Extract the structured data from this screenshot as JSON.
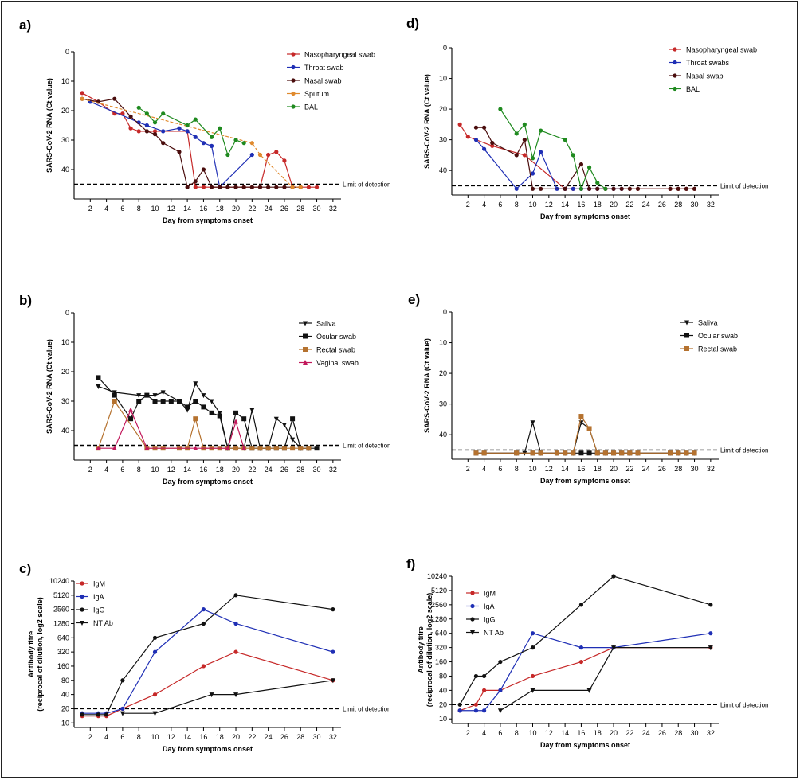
{
  "common": {
    "limit_of_detection_label": "Limit of detection",
    "lod_ct": 45,
    "ct_ticks": [
      0,
      10,
      20,
      30,
      40
    ]
  },
  "colors": {
    "red": "#c62828",
    "blue": "#1f2fb5",
    "darkred": "#4a0d0d",
    "orange": "#e08a2e",
    "green": "#1f8a1f",
    "black": "#111111",
    "brown": "#b5722f",
    "crimson": "#c2185b"
  },
  "chart_data": [
    {
      "id": "a",
      "panel_label": "a)",
      "type": "line",
      "ylabel": "SARS-CoV-2 RNA (Ct value)",
      "xlabel": "Day from symptoms onset",
      "xlim": [
        0,
        33
      ],
      "ylim": [
        0,
        50
      ],
      "y_reversed": true,
      "x_ticks": [
        2,
        4,
        6,
        8,
        10,
        12,
        14,
        16,
        18,
        20,
        22,
        24,
        26,
        28,
        30,
        32
      ],
      "limit_of_detection": 45,
      "series": [
        {
          "name": "Nasopharyngeal swab",
          "color": "red",
          "marker": "circle",
          "x": [
            1,
            3,
            5,
            6,
            7,
            8,
            10,
            14,
            15,
            16,
            18,
            19,
            20,
            21,
            22,
            23,
            24,
            25,
            26,
            27,
            28,
            29,
            30
          ],
          "y": [
            14,
            17,
            21,
            21,
            26,
            27,
            27,
            27,
            46,
            46,
            46,
            46,
            46,
            46,
            46,
            46,
            35,
            34,
            37,
            46,
            46,
            46,
            46
          ]
        },
        {
          "name": "Throat swab",
          "color": "blue",
          "marker": "circle",
          "x": [
            2,
            8,
            9,
            11,
            13,
            14,
            15,
            16,
            17,
            18,
            22
          ],
          "y": [
            17,
            24,
            25,
            27,
            26,
            27,
            29,
            31,
            32,
            46,
            35
          ]
        },
        {
          "name": "Nasal swab",
          "color": "darkred",
          "marker": "circle",
          "x": [
            1,
            3,
            5,
            7,
            9,
            10,
            11,
            13,
            14,
            15,
            16,
            17,
            18,
            19,
            20,
            21,
            22,
            23,
            24,
            25,
            26,
            27,
            28
          ],
          "y": [
            16,
            17,
            16,
            22,
            27,
            28,
            31,
            34,
            46,
            44,
            40,
            46,
            46,
            46,
            46,
            46,
            46,
            46,
            46,
            46,
            46,
            46,
            46
          ]
        },
        {
          "name": "Sputum",
          "color": "orange",
          "marker": "circle",
          "x": [
            1,
            22,
            23,
            27,
            28
          ],
          "y": [
            16,
            31,
            35,
            46,
            46
          ]
        },
        {
          "name": "BAL",
          "color": "green",
          "marker": "circle",
          "x": [
            8,
            9,
            10,
            11,
            14,
            15,
            17,
            18,
            19,
            20,
            21
          ],
          "y": [
            19,
            21,
            24,
            21,
            25,
            23,
            29,
            26,
            35,
            30,
            31
          ]
        }
      ]
    },
    {
      "id": "b",
      "panel_label": "b)",
      "type": "line",
      "ylabel": "SARS-CoV-2 RNA (Ct value)",
      "xlabel": "Day from symptoms onset",
      "xlim": [
        0,
        33
      ],
      "ylim": [
        0,
        50
      ],
      "y_reversed": true,
      "x_ticks": [
        2,
        4,
        6,
        8,
        10,
        12,
        14,
        16,
        18,
        20,
        22,
        24,
        26,
        28,
        30,
        32
      ],
      "limit_of_detection": 45,
      "series": [
        {
          "name": "Saliva",
          "color": "black",
          "marker": "triangle-down",
          "x": [
            3,
            5,
            8,
            9,
            10,
            11,
            13,
            14,
            15,
            16,
            17,
            18,
            19,
            20,
            21,
            22,
            23,
            24,
            25,
            26,
            27,
            28,
            29
          ],
          "y": [
            25,
            27,
            28,
            28,
            28,
            27,
            30,
            33,
            24,
            28,
            30,
            34,
            46,
            46,
            46,
            33,
            46,
            46,
            36,
            38,
            43,
            46,
            46
          ]
        },
        {
          "name": "Ocular swab",
          "color": "black",
          "marker": "square",
          "x": [
            3,
            5,
            7,
            8,
            9,
            10,
            11,
            12,
            13,
            14,
            15,
            16,
            17,
            18,
            19,
            20,
            21,
            22,
            23,
            24,
            25,
            26,
            27,
            28,
            29,
            30
          ],
          "y": [
            22,
            28,
            36,
            30,
            28,
            30,
            30,
            30,
            30,
            32,
            30,
            32,
            34,
            35,
            46,
            34,
            36,
            46,
            46,
            46,
            46,
            46,
            36,
            46,
            46,
            46
          ]
        },
        {
          "name": "Rectal swab",
          "color": "brown",
          "marker": "square",
          "x": [
            3,
            5,
            9,
            10,
            11,
            13,
            14,
            15,
            16,
            17,
            18,
            19,
            20,
            21,
            22,
            23,
            24,
            25,
            26,
            27,
            28,
            29
          ],
          "y": [
            46,
            30,
            46,
            46,
            46,
            46,
            46,
            36,
            46,
            46,
            46,
            46,
            46,
            46,
            46,
            46,
            46,
            46,
            46,
            46,
            46,
            46
          ]
        },
        {
          "name": "Vaginal swab",
          "color": "crimson",
          "marker": "triangle",
          "x": [
            3,
            5,
            7,
            9,
            15,
            19,
            20,
            21
          ],
          "y": [
            46,
            46,
            33,
            46,
            46,
            46,
            37,
            46
          ]
        }
      ]
    },
    {
      "id": "c",
      "panel_label": "c)",
      "type": "line",
      "ylabel": "Antibody titre (reciprocal of dilution, log2 scale)",
      "xlabel": "Day from symptoms onset",
      "xlim": [
        0,
        33
      ],
      "y_scale": "log2",
      "ylim": [
        8,
        10240
      ],
      "x_ticks": [
        2,
        4,
        6,
        8,
        10,
        12,
        14,
        16,
        18,
        20,
        22,
        24,
        26,
        28,
        30,
        32
      ],
      "y_ticks": [
        10,
        20,
        40,
        80,
        160,
        320,
        640,
        1280,
        2560,
        5120,
        10240
      ],
      "limit_of_detection": 20,
      "series": [
        {
          "name": "IgM",
          "color": "red",
          "marker": "circle",
          "x": [
            1,
            3,
            4,
            6,
            10,
            16,
            20,
            32
          ],
          "y": [
            14,
            14,
            14,
            20,
            40,
            160,
            320,
            80
          ]
        },
        {
          "name": "IgA",
          "color": "blue",
          "marker": "circle",
          "x": [
            1,
            3,
            4,
            6,
            10,
            16,
            20,
            32
          ],
          "y": [
            16,
            16,
            16,
            20,
            320,
            2560,
            1280,
            320
          ]
        },
        {
          "name": "IgG",
          "color": "black",
          "marker": "circle",
          "x": [
            1,
            3,
            4,
            6,
            10,
            16,
            20,
            32
          ],
          "y": [
            15,
            15,
            15,
            80,
            640,
            1280,
            5120,
            2560
          ]
        },
        {
          "name": "NT Ab",
          "color": "black",
          "marker": "triangle-down",
          "x": [
            6,
            10,
            17,
            20,
            32
          ],
          "y": [
            16,
            16,
            40,
            40,
            80
          ]
        }
      ]
    },
    {
      "id": "d",
      "panel_label": "d)",
      "type": "line",
      "ylabel": "SARS-CoV-2 RNA (Ct value)",
      "xlabel": "Day from symptoms onset",
      "xlim": [
        0,
        33
      ],
      "ylim": [
        0,
        48
      ],
      "y_reversed": true,
      "x_ticks": [
        2,
        4,
        6,
        8,
        10,
        12,
        14,
        16,
        18,
        20,
        22,
        24,
        26,
        28,
        30,
        32
      ],
      "limit_of_detection": 45,
      "series": [
        {
          "name": "Nasopharyngeal swab",
          "color": "red",
          "marker": "circle",
          "x": [
            1,
            2,
            5,
            9,
            14,
            15,
            16,
            17,
            18,
            19,
            20,
            21,
            22,
            23,
            27,
            28,
            29,
            30
          ],
          "y": [
            25,
            29,
            32,
            35,
            46,
            46,
            46,
            46,
            46,
            46,
            46,
            46,
            46,
            46,
            46,
            46,
            46,
            46
          ]
        },
        {
          "name": "Throat swabs",
          "color": "blue",
          "marker": "circle",
          "x": [
            3,
            4,
            8,
            10,
            11,
            13,
            14,
            15,
            16,
            17,
            18,
            20,
            21
          ],
          "y": [
            30,
            33,
            46,
            41,
            34,
            46,
            46,
            46,
            46,
            46,
            46,
            46,
            46
          ]
        },
        {
          "name": "Nasal swab",
          "color": "darkred",
          "marker": "circle",
          "x": [
            3,
            4,
            5,
            8,
            9,
            10,
            11,
            14,
            16,
            17,
            18,
            19,
            20,
            21,
            22,
            23,
            27,
            28,
            29,
            30
          ],
          "y": [
            26,
            26,
            31,
            35,
            30,
            46,
            46,
            46,
            38,
            46,
            46,
            46,
            46,
            46,
            46,
            46,
            46,
            46,
            46,
            46
          ]
        },
        {
          "name": "BAL",
          "color": "green",
          "marker": "circle",
          "x": [
            6,
            8,
            9,
            10,
            11,
            14,
            15,
            16,
            17,
            18,
            19
          ],
          "y": [
            20,
            28,
            25,
            36,
            27,
            30,
            35,
            46,
            39,
            44,
            46
          ]
        }
      ]
    },
    {
      "id": "e",
      "panel_label": "e)",
      "type": "line",
      "ylabel": "SARS-CoV-2 RNA (Ct value)",
      "xlabel": "Day from symptoms onset",
      "xlim": [
        0,
        33
      ],
      "ylim": [
        0,
        48
      ],
      "y_reversed": true,
      "x_ticks": [
        2,
        4,
        6,
        8,
        10,
        12,
        14,
        16,
        18,
        20,
        22,
        24,
        26,
        28,
        30,
        32
      ],
      "limit_of_detection": 45,
      "series": [
        {
          "name": "Saliva",
          "color": "black",
          "marker": "triangle-down",
          "x": [
            3,
            4,
            8,
            9,
            10,
            11,
            13,
            14,
            15,
            16,
            17,
            18,
            19,
            20,
            21,
            22,
            23,
            27,
            28,
            29,
            30
          ],
          "y": [
            46,
            46,
            46,
            46,
            36,
            46,
            46,
            46,
            46,
            36,
            38,
            46,
            46,
            46,
            46,
            46,
            46,
            46,
            46,
            46,
            46
          ]
        },
        {
          "name": "Ocular swab",
          "color": "black",
          "marker": "square",
          "x": [
            3,
            4,
            8,
            10,
            11,
            13,
            14,
            15,
            16,
            17,
            18,
            19,
            20,
            21,
            22,
            23,
            27,
            28,
            29,
            30
          ],
          "y": [
            46,
            46,
            46,
            46,
            46,
            46,
            46,
            46,
            46,
            46,
            46,
            46,
            46,
            46,
            46,
            46,
            46,
            46,
            46,
            46
          ]
        },
        {
          "name": "Rectal swab",
          "color": "brown",
          "marker": "square",
          "x": [
            3,
            4,
            8,
            10,
            11,
            13,
            14,
            15,
            16,
            17,
            18,
            19,
            20,
            21,
            22,
            23,
            27,
            28,
            29,
            30
          ],
          "y": [
            46,
            46,
            46,
            46,
            46,
            46,
            46,
            46,
            34,
            38,
            46,
            46,
            46,
            46,
            46,
            46,
            46,
            46,
            46,
            46
          ]
        }
      ]
    },
    {
      "id": "f",
      "panel_label": "f)",
      "type": "line",
      "ylabel": "Antibody titre (reciprocal of dilution, log2 scale)",
      "xlabel": "Day from symptoms onset",
      "xlim": [
        0,
        33
      ],
      "y_scale": "log2",
      "ylim": [
        8,
        10240
      ],
      "x_ticks": [
        2,
        4,
        6,
        8,
        10,
        12,
        14,
        16,
        18,
        20,
        22,
        24,
        26,
        28,
        30,
        32
      ],
      "y_ticks": [
        10,
        20,
        40,
        80,
        160,
        320,
        640,
        1280,
        2560,
        5120,
        10240
      ],
      "limit_of_detection": 20,
      "series": [
        {
          "name": "IgM",
          "color": "red",
          "marker": "circle",
          "x": [
            1,
            3,
            4,
            6,
            10,
            16,
            20,
            32
          ],
          "y": [
            15,
            20,
            40,
            40,
            80,
            160,
            320,
            320
          ]
        },
        {
          "name": "IgA",
          "color": "blue",
          "marker": "circle",
          "x": [
            1,
            3,
            4,
            6,
            10,
            16,
            20,
            32
          ],
          "y": [
            15,
            15,
            15,
            40,
            640,
            320,
            320,
            640
          ]
        },
        {
          "name": "IgG",
          "color": "black",
          "marker": "circle",
          "x": [
            1,
            3,
            4,
            6,
            10,
            16,
            20,
            32
          ],
          "y": [
            20,
            80,
            80,
            160,
            320,
            2560,
            10240,
            2560
          ]
        },
        {
          "name": "NT Ab",
          "color": "black",
          "marker": "triangle-down",
          "x": [
            6,
            10,
            17,
            20,
            32
          ],
          "y": [
            15,
            40,
            40,
            320,
            320
          ]
        }
      ]
    }
  ]
}
